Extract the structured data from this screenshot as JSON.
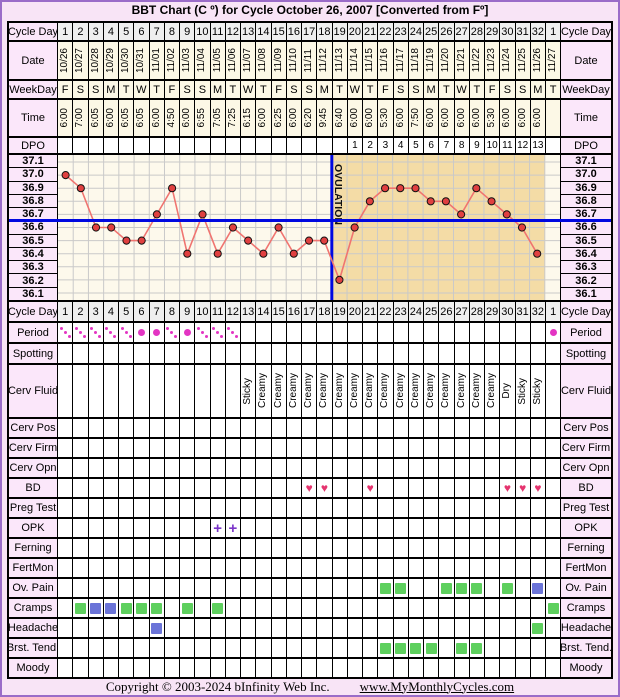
{
  "title": "BBT Chart (C º) for Cycle October 26, 2007  [Converted from Fº]",
  "footer": {
    "copyright": "Copyright © 2003-2024 bInfinity Web Inc.",
    "site": "www.MyMonthlyCycles.com"
  },
  "colors": {
    "frame_border": "#9a6cc8",
    "frame_pink": "#f8e4f6",
    "label_pink": "#fbe7fa",
    "cell_gray": "#efefef",
    "cell_cream": "#fcf8e6",
    "plot_bg": "#fdf9ec",
    "luteal_shade": "#f4dca6",
    "grid_gray": "#c9c9c9",
    "accent_blue": "#0008e0",
    "temp_line": "#f07470",
    "temp_dot": "#e04040",
    "period_magenta": "#e335c3",
    "heart_pink": "#e5356f",
    "square_green": "#5ed05e",
    "square_blue": "#6b74d8",
    "opk_purple": "#7b35c9"
  },
  "chart_data": {
    "type": "line",
    "xlabel": "Cycle Day",
    "x": [
      1,
      2,
      3,
      4,
      5,
      6,
      7,
      8,
      9,
      10,
      11,
      12,
      13,
      14,
      15,
      16,
      17,
      18,
      19,
      20,
      21,
      22,
      23,
      24,
      25,
      26,
      27,
      28,
      29,
      30,
      31,
      32
    ],
    "temps_c": [
      37.0,
      36.9,
      36.6,
      36.6,
      36.5,
      36.5,
      36.7,
      36.9,
      36.4,
      36.7,
      36.4,
      36.6,
      36.5,
      36.4,
      36.6,
      36.4,
      36.5,
      36.5,
      36.2,
      36.6,
      36.8,
      36.9,
      36.9,
      36.9,
      36.8,
      36.8,
      36.7,
      36.9,
      36.8,
      36.7,
      36.6,
      36.4
    ],
    "y_tick_labels": [
      "37.1",
      "37.0",
      "36.9",
      "36.8",
      "36.7",
      "36.6",
      "36.5",
      "36.4",
      "36.3",
      "36.2",
      "36.1"
    ],
    "ylim": [
      36.05,
      37.15
    ],
    "coverline": 36.65,
    "ovulation_day": 19,
    "ovulation_label": "OVULATION",
    "luteal_shaded_days": [
      19,
      32
    ],
    "grid": true,
    "legend": "none"
  },
  "rows": [
    {
      "id": "cycle-day-top",
      "label": "Cycle Day",
      "type": "values",
      "values": [
        "1",
        "2",
        "3",
        "4",
        "5",
        "6",
        "7",
        "8",
        "9",
        "10",
        "11",
        "12",
        "13",
        "14",
        "15",
        "16",
        "17",
        "18",
        "19",
        "20",
        "21",
        "22",
        "23",
        "24",
        "25",
        "26",
        "27",
        "28",
        "29",
        "30",
        "31",
        "32",
        "1"
      ]
    },
    {
      "id": "date",
      "label": "Date",
      "type": "rotated",
      "values": [
        "10/26",
        "10/27",
        "10/28",
        "10/29",
        "10/30",
        "10/31",
        "11/01",
        "11/02",
        "11/03",
        "11/04",
        "11/05",
        "11/06",
        "11/07",
        "11/08",
        "11/09",
        "11/10",
        "11/11",
        "11/12",
        "11/13",
        "11/14",
        "11/15",
        "11/16",
        "11/17",
        "11/18",
        "11/19",
        "11/20",
        "11/21",
        "11/22",
        "11/23",
        "11/24",
        "11/25",
        "11/26",
        "11/27"
      ]
    },
    {
      "id": "weekday",
      "label": "WeekDay",
      "type": "values",
      "values": [
        "F",
        "S",
        "S",
        "M",
        "T",
        "W",
        "T",
        "F",
        "S",
        "S",
        "M",
        "T",
        "W",
        "T",
        "F",
        "S",
        "S",
        "M",
        "T",
        "W",
        "T",
        "F",
        "S",
        "S",
        "M",
        "T",
        "W",
        "T",
        "F",
        "S",
        "S",
        "M",
        "T"
      ]
    },
    {
      "id": "time",
      "label": "Time",
      "type": "rotated",
      "values": [
        "6:00",
        "7:00",
        "6:05",
        "6:00",
        "6:05",
        "6:05",
        "6:00",
        "4:50",
        "6:00",
        "6:55",
        "7:05",
        "7:25",
        "6:15",
        "6:00",
        "6:25",
        "6:00",
        "6:20",
        "9:45",
        "6:40",
        "6:00",
        "6:00",
        "5:30",
        "6:00",
        "7:50",
        "6:00",
        "6:00",
        "6:00",
        "6:00",
        "5:30",
        "6:00",
        "6:00",
        "6:00",
        ""
      ]
    },
    {
      "id": "dpo",
      "label": "DPO",
      "type": "values",
      "values": [
        "",
        "",
        "",
        "",
        "",
        "",
        "",
        "",
        "",
        "",
        "",
        "",
        "",
        "",
        "",
        "",
        "",
        "",
        "",
        "1",
        "2",
        "3",
        "4",
        "5",
        "6",
        "7",
        "8",
        "9",
        "10",
        "11",
        "12",
        "13",
        ""
      ]
    },
    {
      "id": "chart",
      "label": "",
      "type": "chart"
    },
    {
      "id": "cycle-day-bottom",
      "label": "Cycle Day",
      "type": "values",
      "values": [
        "1",
        "2",
        "3",
        "4",
        "5",
        "6",
        "7",
        "8",
        "9",
        "10",
        "11",
        "12",
        "13",
        "14",
        "15",
        "16",
        "17",
        "18",
        "19",
        "20",
        "21",
        "22",
        "23",
        "24",
        "25",
        "26",
        "27",
        "28",
        "29",
        "30",
        "31",
        "32",
        "1"
      ]
    },
    {
      "id": "period",
      "label": "Period",
      "type": "period",
      "entries": [
        {
          "day": 1,
          "style": "dots"
        },
        {
          "day": 2,
          "style": "dots"
        },
        {
          "day": 3,
          "style": "dots"
        },
        {
          "day": 4,
          "style": "dots"
        },
        {
          "day": 5,
          "style": "dots"
        },
        {
          "day": 6,
          "style": "solid"
        },
        {
          "day": 7,
          "style": "solid"
        },
        {
          "day": 8,
          "style": "dots"
        },
        {
          "day": 9,
          "style": "solid"
        },
        {
          "day": 10,
          "style": "dots"
        },
        {
          "day": 11,
          "style": "dots"
        },
        {
          "day": 12,
          "style": "dots"
        },
        {
          "day": 33,
          "style": "solid"
        }
      ]
    },
    {
      "id": "spotting",
      "label": "Spotting",
      "type": "empty"
    },
    {
      "id": "cerv-fluid",
      "label": "Cerv Fluid",
      "type": "rotated",
      "values": [
        "",
        "",
        "",
        "",
        "",
        "",
        "",
        "",
        "",
        "",
        "",
        "",
        "Sticky",
        "Creamy",
        "Creamy",
        "Creamy",
        "Creamy",
        "Creamy",
        "Creamy",
        "Creamy",
        "Creamy",
        "Creamy",
        "Creamy",
        "Creamy",
        "Creamy",
        "Creamy",
        "Creamy",
        "Creamy",
        "Creamy",
        "Dry",
        "Sticky",
        "Sticky",
        ""
      ]
    },
    {
      "id": "cerv-pos",
      "label": "Cerv Pos",
      "type": "empty"
    },
    {
      "id": "cerv-firm",
      "label": "Cerv Firm",
      "type": "empty"
    },
    {
      "id": "cerv-opn",
      "label": "Cerv Opn",
      "type": "empty"
    },
    {
      "id": "bd",
      "label": "BD",
      "type": "symbol",
      "symbol": "heart",
      "days": [
        17,
        18,
        21,
        30,
        31,
        32
      ]
    },
    {
      "id": "preg-test",
      "label": "Preg Test",
      "type": "empty"
    },
    {
      "id": "opk",
      "label": "OPK",
      "type": "symbol",
      "symbol": "plus",
      "days": [
        11,
        12
      ]
    },
    {
      "id": "ferning",
      "label": "Ferning",
      "type": "empty"
    },
    {
      "id": "fertmon",
      "label": "FertMon",
      "type": "empty"
    },
    {
      "id": "ov-pain",
      "label": "Ov. Pain",
      "type": "squares",
      "entries": [
        {
          "day": 22,
          "color": "green"
        },
        {
          "day": 23,
          "color": "green"
        },
        {
          "day": 26,
          "color": "green"
        },
        {
          "day": 27,
          "color": "green"
        },
        {
          "day": 28,
          "color": "green"
        },
        {
          "day": 30,
          "color": "green"
        },
        {
          "day": 32,
          "color": "blue"
        }
      ]
    },
    {
      "id": "cramps",
      "label": "Cramps",
      "type": "squares",
      "entries": [
        {
          "day": 2,
          "color": "green"
        },
        {
          "day": 3,
          "color": "blue"
        },
        {
          "day": 4,
          "color": "blue"
        },
        {
          "day": 5,
          "color": "green"
        },
        {
          "day": 6,
          "color": "green"
        },
        {
          "day": 7,
          "color": "green"
        },
        {
          "day": 9,
          "color": "green"
        },
        {
          "day": 11,
          "color": "green"
        },
        {
          "day": 33,
          "color": "green"
        }
      ]
    },
    {
      "id": "headache",
      "label": "Headache",
      "type": "squares",
      "entries": [
        {
          "day": 7,
          "color": "blue"
        },
        {
          "day": 32,
          "color": "green"
        }
      ]
    },
    {
      "id": "brst-tend",
      "label": "Brst. Tend.",
      "type": "squares",
      "entries": [
        {
          "day": 22,
          "color": "green"
        },
        {
          "day": 23,
          "color": "green"
        },
        {
          "day": 24,
          "color": "green"
        },
        {
          "day": 25,
          "color": "green"
        },
        {
          "day": 27,
          "color": "green"
        },
        {
          "day": 28,
          "color": "green"
        }
      ]
    },
    {
      "id": "moody",
      "label": "Moody",
      "type": "empty"
    }
  ]
}
